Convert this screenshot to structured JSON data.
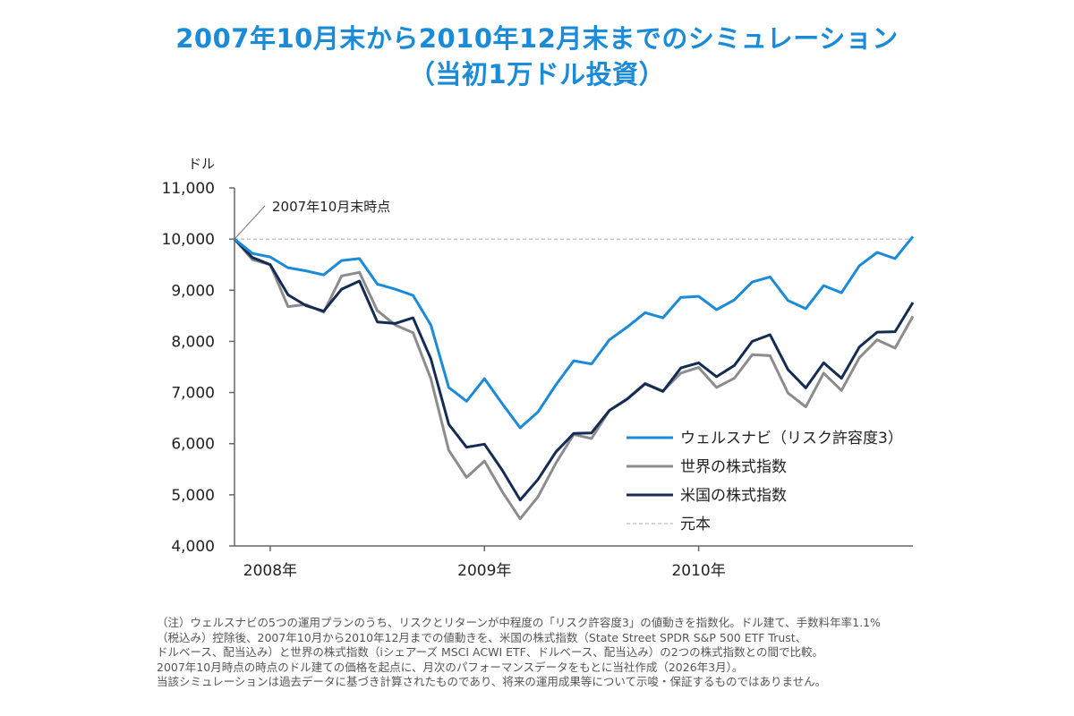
{
  "title_line1": "2007年10月末から2010年12月末までのシミュレーション",
  "title_line2": "（当初1万ドル投資）",
  "chart_data": {
    "type": "line",
    "ylabel": "ドル",
    "ylim": [
      4000,
      11000
    ],
    "yticks": [
      "4,000",
      "5,000",
      "6,000",
      "7,000",
      "8,000",
      "9,000",
      "10,000",
      "11,000"
    ],
    "ytick_values": [
      4000,
      5000,
      6000,
      7000,
      8000,
      9000,
      10000,
      11000
    ],
    "xlim": [
      0,
      38
    ],
    "xticks": [
      {
        "label": "2008年",
        "x": 2
      },
      {
        "label": "2009年",
        "x": 14
      },
      {
        "label": "2010年",
        "x": 26
      }
    ],
    "annotation": {
      "text": "2007年10月末時点",
      "x": 0,
      "y": 10000
    },
    "baseline": {
      "name": "元本",
      "value": 10000
    },
    "series": [
      {
        "name": "ウェルスナビ（リスク許容度3）",
        "color": "#1a8bd8",
        "values": [
          10000,
          9720,
          9650,
          9440,
          9380,
          9300,
          9580,
          9620,
          9120,
          9020,
          8900,
          8320,
          7100,
          6830,
          7270,
          6780,
          6310,
          6620,
          7150,
          7620,
          7560,
          8030,
          8280,
          8560,
          8460,
          8860,
          8880,
          8620,
          8810,
          9160,
          9260,
          8800,
          8640,
          9090,
          8950,
          9480,
          9740,
          9620,
          10050
        ]
      },
      {
        "name": "世界の株式指数",
        "color": "#8c8c8c",
        "values": [
          10000,
          9600,
          9500,
          8680,
          8720,
          8570,
          9280,
          9350,
          8600,
          8320,
          8170,
          7270,
          5870,
          5340,
          5660,
          5060,
          4530,
          4960,
          5620,
          6180,
          6100,
          6650,
          6880,
          7180,
          7030,
          7380,
          7490,
          7100,
          7280,
          7740,
          7720,
          6990,
          6720,
          7380,
          7040,
          7680,
          8030,
          7870,
          8490
        ]
      },
      {
        "name": "米国の株式指数",
        "color": "#142b54",
        "values": [
          10000,
          9640,
          9500,
          8910,
          8700,
          8590,
          9020,
          9180,
          8380,
          8350,
          8460,
          7660,
          6380,
          5930,
          5990,
          5480,
          4900,
          5300,
          5840,
          6200,
          6210,
          6650,
          6870,
          7170,
          7020,
          7480,
          7580,
          7310,
          7530,
          8000,
          8130,
          7450,
          7090,
          7580,
          7280,
          7890,
          8180,
          8190,
          8760
        ]
      }
    ]
  },
  "notes": [
    "（注）ウェルスナビの5つの運用プランのうち、リスクとリターンが中程度の「リスク許容度3」の値動きを指数化。ドル建て、手数料年率1.1%",
    "（税込み）控除後、2007年10月から2010年12月までの値動きを、米国の株式指数（State Street SPDR S&P 500 ETF Trust、",
    "ドルベース、配当込み）と世界の株式指数（iシェアーズ MSCI ACWI ETF、ドルベース、配当込み）の2つの株式指数との間で比較。",
    "2007年10月時点の時点のドル建ての価格を起点に、月次のパフォーマンスデータをもとに当社作成（2026年3月）。",
    "当該シミュレーションは過去データに基づき計算されたものであり、将来の運用成果等について示唆・保証するものではありません。"
  ]
}
